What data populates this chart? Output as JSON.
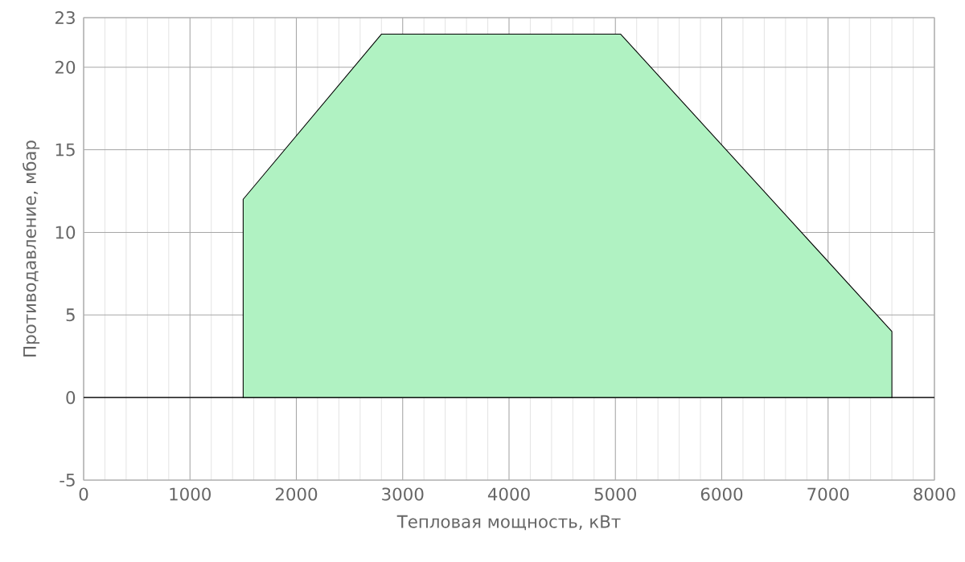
{
  "chart_data": {
    "type": "area",
    "xlabel": "Тепловая мощность, кВт",
    "ylabel": "Противодавление, мбар",
    "x": [
      1500,
      1500,
      2800,
      5050,
      7600,
      7600
    ],
    "values": [
      0,
      12,
      22,
      22,
      4,
      0
    ],
    "color": "#b0f2c2",
    "xlim": [
      0,
      8000
    ],
    "xticks": [
      0,
      1000,
      2000,
      3000,
      4000,
      5000,
      6000,
      7000,
      8000
    ],
    "ylim": [
      -5,
      23
    ],
    "yticks": [
      -5,
      0,
      5,
      10,
      15,
      20,
      23
    ],
    "grid": true,
    "ref_lines": [
      {
        "axis": "y",
        "value": 0,
        "color": "#000000"
      }
    ]
  }
}
